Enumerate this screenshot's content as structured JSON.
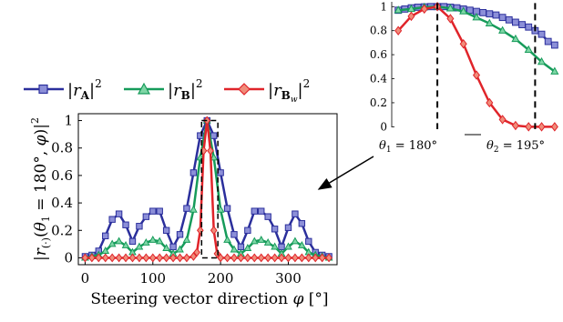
{
  "chart_data": [
    {
      "type": "line",
      "xlabel": "Steering vector direction φ [°]",
      "ylabel": "|r(·)(θ1 = 180°, φ)|²",
      "xlim": [
        -10,
        372
      ],
      "ylim": [
        -0.05,
        1.05
      ],
      "xticks": [
        "0",
        "100",
        "200",
        "300"
      ],
      "yticks": [
        "0",
        "0.2",
        "0.4",
        "0.6",
        "0.8",
        "1"
      ],
      "legend": "top-left, above plot",
      "series": [
        {
          "name": "|rA|²",
          "color": "#2b2f9c",
          "marker": "square",
          "x": [
            0,
            10,
            20,
            30,
            40,
            50,
            60,
            70,
            80,
            90,
            100,
            110,
            120,
            130,
            140,
            150,
            160,
            170,
            180,
            190,
            200,
            210,
            220,
            230,
            240,
            250,
            260,
            270,
            280,
            290,
            300,
            310,
            320,
            330,
            340,
            350,
            360
          ],
          "y": [
            0.01,
            0.02,
            0.05,
            0.16,
            0.28,
            0.32,
            0.24,
            0.12,
            0.23,
            0.3,
            0.34,
            0.34,
            0.2,
            0.08,
            0.17,
            0.36,
            0.62,
            0.89,
            1.0,
            0.89,
            0.62,
            0.36,
            0.17,
            0.08,
            0.2,
            0.34,
            0.34,
            0.3,
            0.21,
            0.08,
            0.22,
            0.32,
            0.25,
            0.12,
            0.04,
            0.02,
            0.01
          ]
        },
        {
          "name": "|rB|²",
          "color": "#169b5a",
          "marker": "triangle",
          "x": [
            0,
            10,
            20,
            30,
            40,
            50,
            60,
            70,
            80,
            90,
            100,
            110,
            120,
            130,
            140,
            150,
            160,
            170,
            180,
            190,
            200,
            210,
            220,
            230,
            240,
            250,
            260,
            270,
            280,
            290,
            300,
            310,
            320,
            330,
            340,
            350,
            360
          ],
          "y": [
            0.0,
            0.01,
            0.02,
            0.05,
            0.1,
            0.12,
            0.09,
            0.04,
            0.08,
            0.11,
            0.13,
            0.12,
            0.07,
            0.03,
            0.06,
            0.13,
            0.35,
            0.73,
            1.0,
            0.73,
            0.35,
            0.13,
            0.06,
            0.03,
            0.07,
            0.12,
            0.13,
            0.11,
            0.08,
            0.03,
            0.08,
            0.12,
            0.09,
            0.04,
            0.02,
            0.01,
            0.0
          ]
        },
        {
          "name": "|rBw|²",
          "color": "#e0242a",
          "marker": "diamond",
          "x": [
            0,
            10,
            20,
            30,
            40,
            50,
            60,
            70,
            80,
            90,
            100,
            110,
            120,
            130,
            140,
            150,
            160,
            165,
            170,
            175,
            180,
            185,
            190,
            195,
            200,
            210,
            220,
            230,
            240,
            250,
            260,
            270,
            280,
            290,
            300,
            310,
            320,
            330,
            340,
            350,
            360
          ],
          "y": [
            0,
            0,
            0,
            0,
            0,
            0,
            0,
            0,
            0,
            0,
            0,
            0,
            0,
            0,
            0,
            0,
            0.01,
            0.04,
            0.2,
            0.78,
            1.0,
            0.78,
            0.2,
            0.03,
            0.0,
            0,
            0,
            0,
            0,
            0,
            0,
            0,
            0,
            0,
            0,
            0,
            0,
            0,
            0,
            0,
            0
          ]
        }
      ]
    },
    {
      "type": "line",
      "xlim": [
        173,
        199
      ],
      "ylim": [
        -0.02,
        1.04
      ],
      "yticks": [
        "0",
        "0.2",
        "0.4",
        "0.6",
        "0.8",
        "1"
      ],
      "annotations": [
        "θ1 = 180°",
        "θ2 = 195°"
      ],
      "series": [
        {
          "name": "|rA|²",
          "color": "#2b2f9c",
          "marker": "square",
          "x": [
            174,
            175,
            176,
            177,
            178,
            179,
            180,
            181,
            182,
            183,
            184,
            185,
            186,
            187,
            188,
            189,
            190,
            191,
            192,
            193,
            194,
            195,
            196,
            197,
            198
          ],
          "y": [
            0.97,
            0.98,
            0.99,
            0.995,
            0.998,
            1.0,
            1.0,
            1.0,
            0.995,
            0.99,
            0.98,
            0.97,
            0.96,
            0.95,
            0.94,
            0.93,
            0.91,
            0.89,
            0.87,
            0.85,
            0.83,
            0.8,
            0.77,
            0.71,
            0.68
          ]
        },
        {
          "name": "|rB|²",
          "color": "#169b5a",
          "marker": "triangle",
          "x": [
            174,
            176,
            178,
            180,
            182,
            184,
            186,
            188,
            190,
            192,
            194,
            196,
            198
          ],
          "y": [
            0.97,
            0.98,
            0.995,
            1.0,
            0.985,
            0.96,
            0.91,
            0.86,
            0.8,
            0.73,
            0.64,
            0.54,
            0.46
          ]
        },
        {
          "name": "|rBw|²",
          "color": "#e0242a",
          "marker": "diamond",
          "x": [
            174,
            176,
            178,
            180,
            182,
            184,
            186,
            188,
            190,
            192,
            194,
            196,
            198
          ],
          "y": [
            0.8,
            0.92,
            0.98,
            1.0,
            0.9,
            0.69,
            0.43,
            0.2,
            0.06,
            0.01,
            0.0,
            0.0,
            0.0
          ]
        }
      ]
    }
  ]
}
